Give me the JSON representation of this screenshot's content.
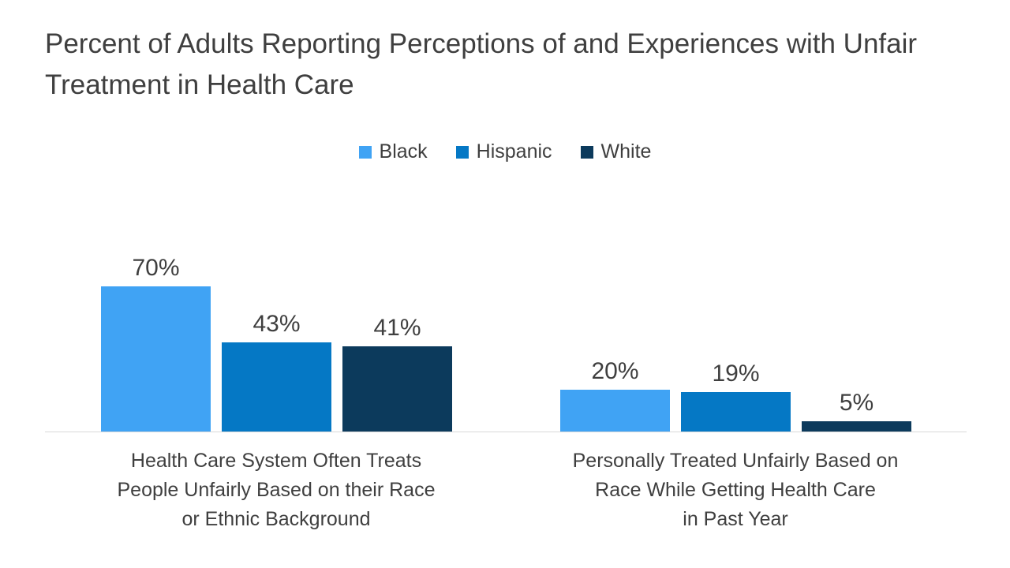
{
  "title": "Percent of Adults Reporting Perceptions of and Experiences with Unfair Treatment in Health Care",
  "colors": {
    "series_black": "#40A3F4",
    "series_hispanic": "#0578C5",
    "series_white": "#0C3A5C",
    "axis_line": "#D9D9D9",
    "text": "#3F3F3F"
  },
  "chart_data": {
    "type": "bar",
    "title": "Percent of Adults Reporting Perceptions of and Experiences with Unfair Treatment in Health Care",
    "categories": [
      [
        "Health Care System Often Treats",
        "People Unfairly Based on their Race",
        "or Ethnic Background"
      ],
      [
        "Personally Treated Unfairly Based on",
        "Race While Getting Health Care",
        "in Past Year"
      ]
    ],
    "series": [
      {
        "name": "Black",
        "color": "#40A3F4",
        "values": [
          70,
          20
        ]
      },
      {
        "name": "Hispanic",
        "color": "#0578C5",
        "values": [
          43,
          19
        ]
      },
      {
        "name": "White",
        "color": "#0C3A5C",
        "values": [
          41,
          5
        ]
      }
    ],
    "value_suffix": "%",
    "data_labels": true,
    "ylim": [
      0,
      100
    ],
    "grid": false,
    "legend_position": "top-center",
    "xlabel": "",
    "ylabel": ""
  }
}
